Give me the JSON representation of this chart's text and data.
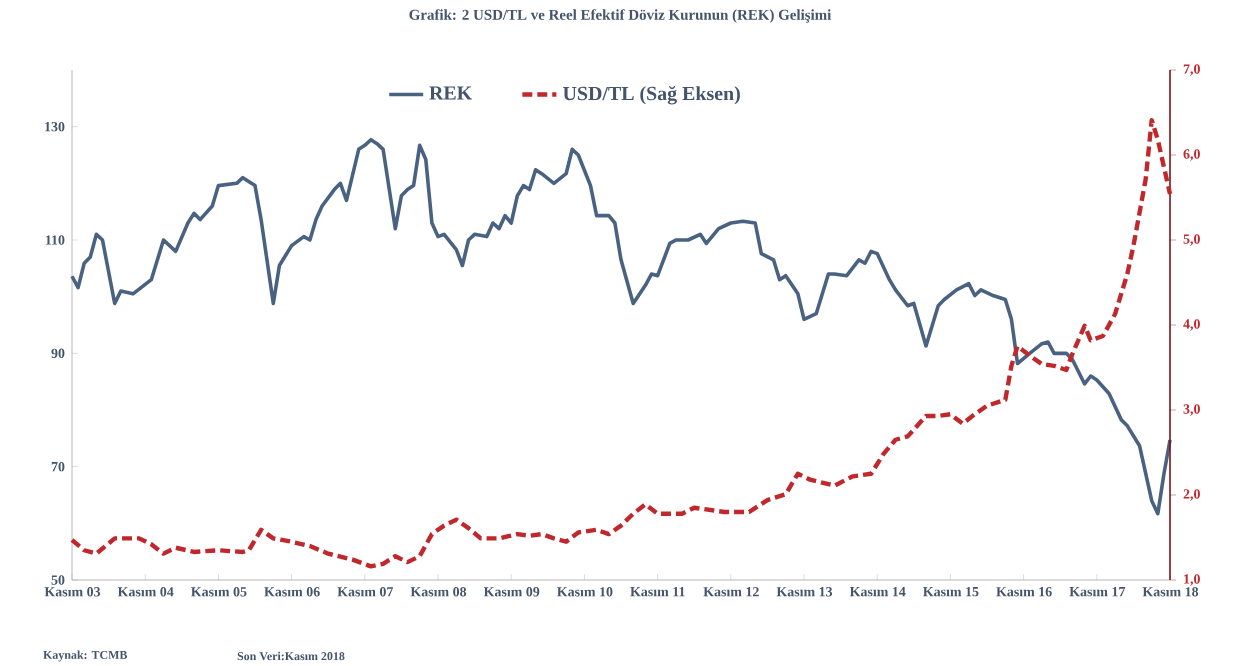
{
  "chart_data": {
    "type": "line",
    "title": "Grafik: 2      USD/TL ve Reel Efektif Döviz Kurunun (REK) Gelişimi",
    "annotations": [
      "Kaynak: TCMB",
      "Son Veri:Kasım 2018"
    ],
    "xlim": [
      "2003-11",
      "2018-11"
    ],
    "xticks": [
      {
        "value": "2003-11",
        "label": "Kasım 03"
      },
      {
        "value": "2004-11",
        "label": "Kasım 04"
      },
      {
        "value": "2005-11",
        "label": "Kasım 05"
      },
      {
        "value": "2006-11",
        "label": "Kasım 06"
      },
      {
        "value": "2007-11",
        "label": "Kasım 07"
      },
      {
        "value": "2008-11",
        "label": "Kasım 08"
      },
      {
        "value": "2009-11",
        "label": "Kasım 09"
      },
      {
        "value": "2010-11",
        "label": "Kasım 10"
      },
      {
        "value": "2011-11",
        "label": "Kasım 11"
      },
      {
        "value": "2012-11",
        "label": "Kasım 12"
      },
      {
        "value": "2013-11",
        "label": "Kasım 13"
      },
      {
        "value": "2014-11",
        "label": "Kasım 14"
      },
      {
        "value": "2015-11",
        "label": "Kasım 15"
      },
      {
        "value": "2016-11",
        "label": "Kasım 16"
      },
      {
        "value": "2017-11",
        "label": "Kasım 17"
      },
      {
        "value": "2018-11",
        "label": "Kasım 18"
      }
    ],
    "ylim": [
      50,
      140
    ],
    "yticks": [
      50,
      70,
      90,
      110,
      130
    ],
    "y2lim": [
      1,
      7
    ],
    "y2ticks": [
      {
        "value": 1,
        "label": "1,0"
      },
      {
        "value": 2,
        "label": "2,0"
      },
      {
        "value": 3,
        "label": "3,0"
      },
      {
        "value": 4,
        "label": "4,0"
      },
      {
        "value": 5,
        "label": "5,0"
      },
      {
        "value": 6,
        "label": "6,0"
      },
      {
        "value": 7,
        "label": "7,0"
      }
    ],
    "legend": "top",
    "marker": "none",
    "series": [
      {
        "name": "REK",
        "color": "#4a6282",
        "line_style": "solid",
        "x": [
          "2003-11",
          "2003-12",
          "2004-01",
          "2004-02",
          "2004-03",
          "2004-04",
          "2004-06",
          "2004-07",
          "2004-09",
          "2004-12",
          "2005-02",
          "2005-04",
          "2005-06",
          "2005-07",
          "2005-08",
          "2005-10",
          "2005-11",
          "2006-02",
          "2006-03",
          "2006-05",
          "2006-06",
          "2006-08",
          "2006-09",
          "2006-11",
          "2007-01",
          "2007-02",
          "2007-03",
          "2007-04",
          "2007-06",
          "2007-07",
          "2007-08",
          "2007-10",
          "2007-11",
          "2007-12",
          "2008-01",
          "2008-02",
          "2008-04",
          "2008-05",
          "2008-06",
          "2008-07",
          "2008-08",
          "2008-09",
          "2008-10",
          "2008-11",
          "2008-12",
          "2009-02",
          "2009-03",
          "2009-04",
          "2009-05",
          "2009-07",
          "2009-08",
          "2009-09",
          "2009-10",
          "2009-11",
          "2009-12",
          "2010-01",
          "2010-02",
          "2010-03",
          "2010-04",
          "2010-06",
          "2010-08",
          "2010-09",
          "2010-10",
          "2010-12",
          "2011-01",
          "2011-03",
          "2011-04",
          "2011-05",
          "2011-07",
          "2011-09",
          "2011-10",
          "2011-11",
          "2012-01",
          "2012-02",
          "2012-04",
          "2012-06",
          "2012-07",
          "2012-09",
          "2012-11",
          "2013-01",
          "2013-03",
          "2013-04",
          "2013-06",
          "2013-07",
          "2013-08",
          "2013-10",
          "2013-11",
          "2014-01",
          "2014-03",
          "2014-04",
          "2014-06",
          "2014-08",
          "2014-09",
          "2014-10",
          "2014-11",
          "2015-01",
          "2015-02",
          "2015-04",
          "2015-05",
          "2015-07",
          "2015-09",
          "2015-10",
          "2015-12",
          "2016-02",
          "2016-03",
          "2016-04",
          "2016-06",
          "2016-08",
          "2016-09",
          "2016-10",
          "2016-12",
          "2017-02",
          "2017-03",
          "2017-04",
          "2017-06",
          "2017-07",
          "2017-09",
          "2017-10",
          "2017-11",
          "2018-01",
          "2018-03",
          "2018-04",
          "2018-06",
          "2018-08",
          "2018-09",
          "2018-10",
          "2018-11"
        ],
        "values": [
          103.6,
          101.6,
          105.9,
          107,
          111,
          110,
          98.8,
          101,
          100.5,
          103,
          110,
          108,
          113,
          114.7,
          113.6,
          116,
          119.6,
          120,
          121,
          119.6,
          113.6,
          98.8,
          105.5,
          109,
          110.6,
          110,
          113.6,
          116,
          118.9,
          120,
          117,
          126,
          126.7,
          127.7,
          127,
          126,
          112,
          117.8,
          118.9,
          119.6,
          126.7,
          124.2,
          113,
          110.6,
          111,
          108.3,
          105.5,
          110,
          111,
          110.6,
          113,
          112,
          114.3,
          113,
          117.8,
          119.6,
          118.9,
          122.4,
          121.7,
          120,
          121.7,
          126,
          125,
          119.6,
          114.3,
          114.3,
          113,
          106.5,
          98.8,
          102,
          104,
          103.7,
          109.4,
          110,
          110,
          111,
          109.4,
          112,
          113,
          113.3,
          113,
          107.6,
          106.5,
          103,
          103.7,
          100.5,
          96,
          97,
          104,
          104,
          103.7,
          106.5,
          105.9,
          108,
          107.6,
          103,
          101.2,
          98.4,
          98.8,
          91.3,
          98.4,
          99.5,
          101.2,
          102.3,
          100.2,
          101.2,
          100.2,
          99.5,
          96,
          88.2,
          90,
          91.7,
          92,
          90,
          90,
          88.9,
          84.6,
          86,
          85.3,
          82.9,
          78.3,
          77.2,
          73.7,
          64,
          61.7,
          68.7,
          74.7
        ]
      },
      {
        "name": "USD/TL  (Sağ Eksen)",
        "color": "#c0282d",
        "line_style": "dashed",
        "axis": "y2",
        "x": [
          "2003-11",
          "2004-01",
          "2004-03",
          "2004-06",
          "2004-08",
          "2004-10",
          "2004-12",
          "2005-02",
          "2005-04",
          "2005-07",
          "2005-11",
          "2006-03",
          "2006-04",
          "2006-06",
          "2006-08",
          "2006-11",
          "2007-02",
          "2007-05",
          "2007-09",
          "2007-12",
          "2008-02",
          "2008-04",
          "2008-06",
          "2008-08",
          "2008-10",
          "2008-12",
          "2009-02",
          "2009-04",
          "2009-06",
          "2009-09",
          "2009-12",
          "2010-02",
          "2010-04",
          "2010-06",
          "2010-08",
          "2010-10",
          "2011-01",
          "2011-03",
          "2011-05",
          "2011-07",
          "2011-09",
          "2011-11",
          "2012-03",
          "2012-05",
          "2012-10",
          "2013-02",
          "2013-05",
          "2013-08",
          "2013-10",
          "2013-12",
          "2014-04",
          "2014-07",
          "2014-10",
          "2014-12",
          "2015-02",
          "2015-04",
          "2015-07",
          "2015-09",
          "2015-11",
          "2016-01",
          "2016-03",
          "2016-05",
          "2016-08",
          "2016-09",
          "2016-10",
          "2016-12",
          "2017-02",
          "2017-04",
          "2017-06",
          "2017-07",
          "2017-09",
          "2017-10",
          "2017-12",
          "2018-02",
          "2018-04",
          "2018-05",
          "2018-07",
          "2018-08",
          "2018-09",
          "2018-11"
        ],
        "values": [
          1.47,
          1.35,
          1.31,
          1.49,
          1.49,
          1.49,
          1.42,
          1.31,
          1.38,
          1.33,
          1.35,
          1.33,
          1.35,
          1.59,
          1.49,
          1.45,
          1.4,
          1.31,
          1.24,
          1.16,
          1.19,
          1.28,
          1.21,
          1.28,
          1.54,
          1.64,
          1.71,
          1.61,
          1.49,
          1.49,
          1.54,
          1.52,
          1.54,
          1.49,
          1.45,
          1.56,
          1.59,
          1.54,
          1.64,
          1.78,
          1.89,
          1.78,
          1.78,
          1.85,
          1.8,
          1.8,
          1.94,
          2.01,
          2.25,
          2.18,
          2.11,
          2.22,
          2.25,
          2.48,
          2.65,
          2.69,
          2.93,
          2.93,
          2.95,
          2.84,
          2.95,
          3.05,
          3.12,
          3.52,
          3.75,
          3.64,
          3.54,
          3.52,
          3.47,
          3.66,
          3.99,
          3.82,
          3.87,
          4.13,
          4.6,
          4.93,
          5.71,
          6.41,
          6.18,
          5.54
        ]
      }
    ]
  }
}
